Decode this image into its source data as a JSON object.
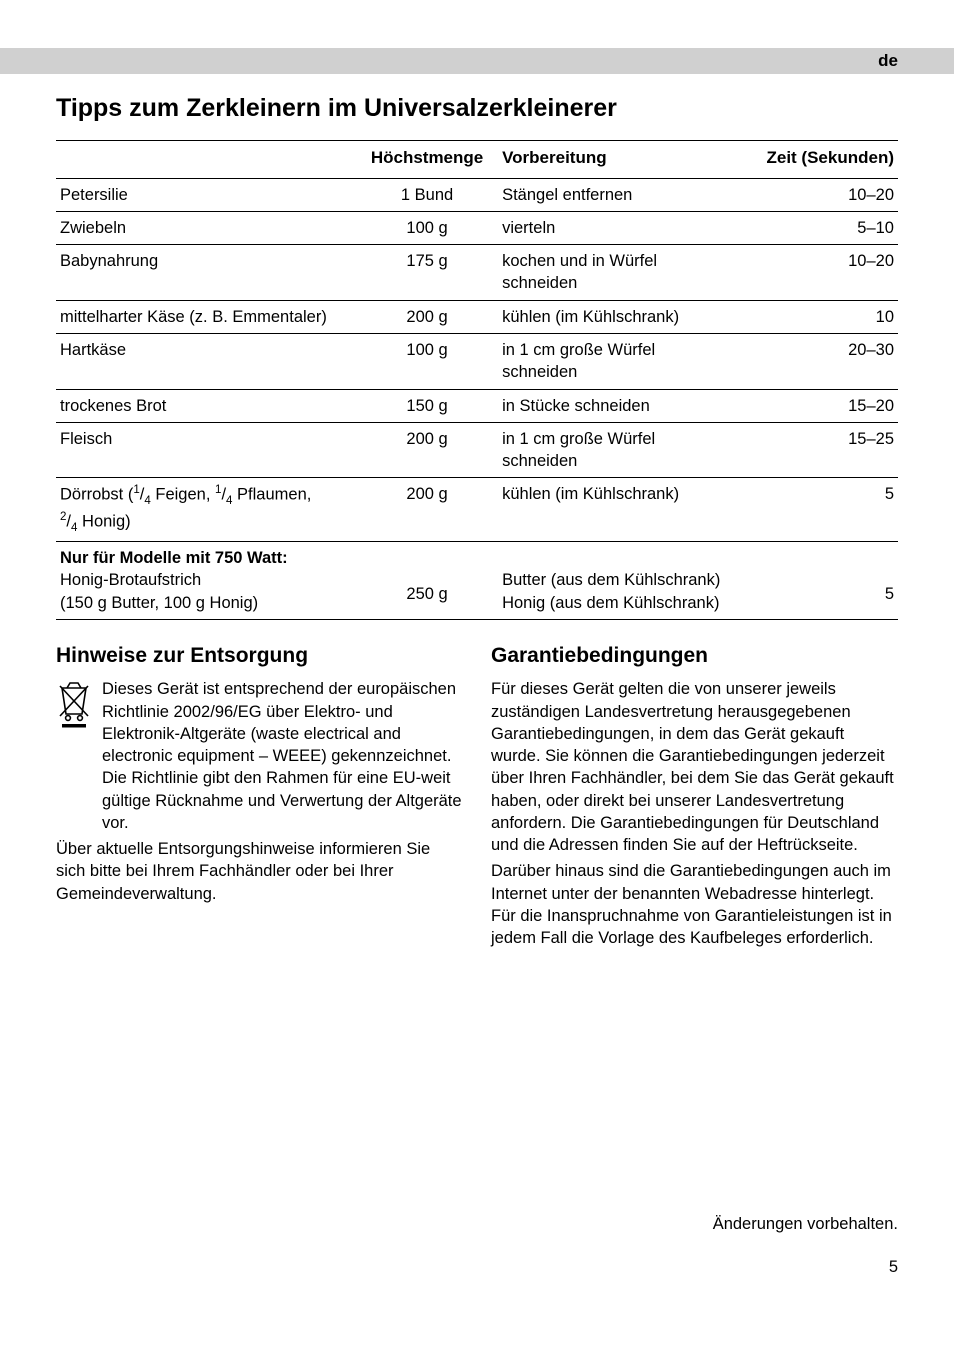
{
  "lang": "de",
  "heading": "Tipps zum Zerkleinern im Universalzerkleinerer",
  "table": {
    "headers": {
      "item": "",
      "menge": "Höchstmenge",
      "prep": "Vorbereitung",
      "zeit": "Zeit (Sekunden)"
    },
    "rows": [
      {
        "item": "Petersilie",
        "menge": "1 Bund",
        "prep": "Stängel entfernen",
        "zeit": "10–20"
      },
      {
        "item": "Zwiebeln",
        "menge": "100 g",
        "prep": "vierteln",
        "zeit": "5–10"
      },
      {
        "item": "Babynahrung",
        "menge": "175 g",
        "prep": "kochen und in Würfel schneiden",
        "zeit": "10–20"
      },
      {
        "item": "mittelharter Käse (z. B. Emmentaler)",
        "menge": "200 g",
        "prep": "kühlen (im Kühlschrank)",
        "zeit": "10"
      },
      {
        "item": "Hartkäse",
        "menge": "100 g",
        "prep": "in 1 cm große Würfel schneiden",
        "zeit": "20–30"
      },
      {
        "item": "trockenes Brot",
        "menge": "150 g",
        "prep": "in Stücke schneiden",
        "zeit": "15–20"
      },
      {
        "item": "Fleisch",
        "menge": "200 g",
        "prep": "in 1 cm große Würfel schneiden",
        "zeit": "15–25"
      }
    ],
    "doerrobst": {
      "prefix": "Dörrobst (",
      "f1n": "1",
      "f1d": "4",
      "f1label": " Feigen, ",
      "f2n": "1",
      "f2d": "4",
      "f2label": " Pflaumen, ",
      "f3n": "2",
      "f3d": "4",
      "f3label": " Honig)",
      "menge": "200 g",
      "prep": "kühlen (im Kühlschrank)",
      "zeit": "5"
    },
    "modell_title": "Nur für Modelle mit 750 Watt:",
    "modell_line1": "Honig-Brotaufstrich",
    "modell_line2": "(150 g Butter, 100 g Honig)",
    "modell_menge": "250 g",
    "modell_prep": "Butter (aus dem Kühlschrank) Honig (aus dem Kühlschrank)",
    "modell_zeit": "5"
  },
  "entsorgung": {
    "title": "Hinweise zur Entsorgung",
    "p1": "Dieses Gerät ist entsprechend der europäischen Richtlinie 2002/96/EG über Elektro- und Elektronik-Altgeräte (waste electrical and electronic equipment – WEEE) gekennzeichnet. Die Richtlinie gibt den Rahmen für eine EU-weit gültige Rücknahme und Verwertung der Altgeräte vor.",
    "p2": "Über aktuelle Entsorgungshinweise infor­mieren Sie sich bitte bei Ihrem Fachhändler oder bei Ihrer Gemeindeverwaltung."
  },
  "garantie": {
    "title": "Garantiebedingungen",
    "p1": "Für dieses Gerät gelten die von unserer jeweils zuständigen Landesvertretung herausge­gebenen Garantiebedingungen, in dem das Gerät gekauft wurde. Sie können die Garantiebedingungen jederzeit über Ihren Fachhändler, bei dem Sie das Gerät gekauft haben, oder direkt bei unserer Landes­vertretung anfordern. Die Garantie­bedingungen für Deutschland und die Adressen finden Sie auf der Heftrückseite.",
    "p2": "Darüber hinaus sind die Garantiebedingungen auch im Internet unter der benannten Webadresse hinterlegt. Für die Inanspruch­nahme von Garantieleistungen ist in jedem Fall die Vorlage des Kaufbeleges erforderlich."
  },
  "footer": "Änderungen vorbehalten.",
  "page": "5"
}
